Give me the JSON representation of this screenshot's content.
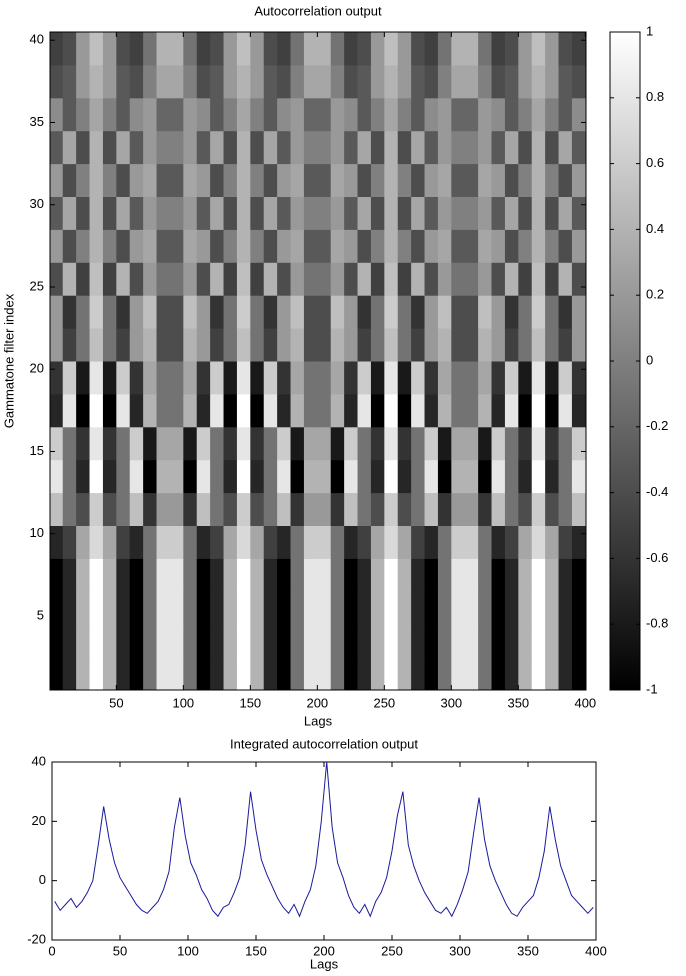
{
  "chart_data": [
    {
      "type": "heatmap",
      "title": "Autocorrelation output",
      "xlabel": "Lags",
      "ylabel": "Gammatone filter index",
      "colormap": "gray",
      "clim": [
        -1,
        1
      ],
      "colorbar_ticks": [
        -1,
        -0.8,
        -0.6,
        -0.4,
        -0.2,
        0,
        0.2,
        0.4,
        0.6,
        0.8,
        1
      ],
      "xlim": [
        0.5,
        400.5
      ],
      "xticks": [
        50,
        100,
        150,
        200,
        250,
        300,
        350,
        400
      ],
      "ylim": [
        0.5,
        40.5
      ],
      "yticks": [
        5,
        10,
        15,
        20,
        25,
        30,
        35,
        40
      ],
      "x": [
        5,
        15,
        25,
        35,
        45,
        55,
        65,
        75,
        85,
        95,
        105,
        115,
        125,
        135,
        145,
        155,
        165,
        175,
        185,
        195,
        205,
        215,
        225,
        235,
        245,
        255,
        265,
        275,
        285,
        295,
        305,
        315,
        325,
        335,
        345,
        355,
        365,
        375,
        385,
        395
      ],
      "y": [
        2,
        4,
        6,
        8,
        10,
        12,
        14,
        16,
        18,
        20,
        22,
        24,
        26,
        28,
        30,
        32,
        34,
        36,
        38,
        40
      ],
      "values": [
        [
          -1,
          -0.7,
          0.4,
          1,
          0.4,
          -0.7,
          -1,
          -0.1,
          0.8,
          0.8,
          -0.1,
          -1,
          -0.7,
          0.4,
          1,
          0.4,
          -0.7,
          -1,
          -0.1,
          0.8,
          0.8,
          -0.1,
          -1,
          -0.7,
          0.4,
          1,
          0.4,
          -0.7,
          -1,
          -0.1,
          0.8,
          0.8,
          -0.1,
          -1,
          -0.7,
          0.4,
          1,
          0.4,
          -0.7,
          -1
        ],
        [
          -1,
          -0.7,
          0.4,
          1,
          0.4,
          -0.7,
          -1,
          -0.1,
          0.8,
          0.8,
          -0.1,
          -1,
          -0.7,
          0.4,
          1,
          0.4,
          -0.7,
          -1,
          -0.1,
          0.8,
          0.8,
          -0.1,
          -1,
          -0.7,
          0.4,
          1,
          0.4,
          -0.7,
          -1,
          -0.1,
          0.8,
          0.8,
          -0.1,
          -1,
          -0.7,
          0.4,
          1,
          0.4,
          -0.7,
          -1
        ],
        [
          -1,
          -0.7,
          0.4,
          1,
          0.4,
          -0.7,
          -1,
          -0.1,
          0.8,
          0.8,
          -0.1,
          -1,
          -0.7,
          0.4,
          1,
          0.4,
          -0.7,
          -1,
          -0.1,
          0.8,
          0.8,
          -0.1,
          -1,
          -0.7,
          0.4,
          1,
          0.4,
          -0.7,
          -1,
          -0.1,
          0.8,
          0.8,
          -0.1,
          -1,
          -0.7,
          0.4,
          1,
          0.4,
          -0.7,
          -1
        ],
        [
          -1,
          -0.7,
          0.4,
          1,
          0.4,
          -0.7,
          -1,
          -0.1,
          0.8,
          0.8,
          -0.1,
          -1,
          -0.7,
          0.4,
          1,
          0.4,
          -0.7,
          -1,
          -0.1,
          0.8,
          0.8,
          -0.1,
          -1,
          -0.7,
          0.4,
          1,
          0.4,
          -0.7,
          -1,
          -0.1,
          0.8,
          0.8,
          -0.1,
          -1,
          -0.7,
          0.4,
          1,
          0.4,
          -0.7,
          -1
        ],
        [
          -0.7,
          -0.5,
          0.3,
          0.7,
          0.3,
          -0.5,
          -0.7,
          -0.1,
          0.6,
          0.6,
          -0.1,
          -0.7,
          -0.5,
          0.3,
          0.7,
          0.3,
          -0.5,
          -0.7,
          -0.1,
          0.6,
          0.6,
          -0.1,
          -0.7,
          -0.5,
          0.3,
          0.7,
          0.3,
          -0.5,
          -0.7,
          -0.1,
          0.6,
          0.6,
          -0.1,
          -0.7,
          -0.5,
          0.3,
          0.7,
          0.3,
          -0.5,
          -0.7
        ],
        [
          0.5,
          -0.1,
          -0.4,
          0.6,
          -0.4,
          -0.1,
          0.5,
          -0.6,
          0.2,
          0.2,
          -0.6,
          0.5,
          -0.1,
          -0.4,
          0.6,
          -0.4,
          -0.1,
          0.5,
          -0.6,
          0.2,
          0.2,
          -0.6,
          0.5,
          -0.1,
          -0.4,
          0.6,
          -0.4,
          -0.1,
          0.5,
          -0.6,
          0.2,
          0.2,
          -0.6,
          0.5,
          -0.1,
          -0.4,
          0.6,
          -0.4,
          -0.1,
          0.5
        ],
        [
          0.8,
          -0.1,
          -0.7,
          1,
          -0.7,
          -0.1,
          0.8,
          -1,
          0.4,
          0.4,
          -1,
          0.8,
          -0.1,
          -0.7,
          1,
          -0.7,
          -0.1,
          0.8,
          -1,
          0.4,
          0.4,
          -1,
          0.8,
          -0.1,
          -0.7,
          1,
          -0.7,
          -0.1,
          0.8,
          -1,
          0.4,
          0.4,
          -1,
          0.8,
          -0.1,
          -0.7,
          1,
          -0.7,
          -0.1,
          0.8
        ],
        [
          0.6,
          -0.1,
          -0.6,
          0.8,
          -0.6,
          -0.1,
          0.6,
          -0.8,
          0.3,
          0.3,
          -0.8,
          0.6,
          -0.1,
          -0.6,
          0.8,
          -0.6,
          -0.1,
          0.6,
          -0.8,
          0.3,
          0.3,
          -0.8,
          0.6,
          -0.1,
          -0.6,
          0.8,
          -0.6,
          -0.1,
          0.6,
          -0.8,
          0.3,
          0.3,
          -0.8,
          0.6,
          -0.1,
          -0.6,
          0.8,
          -0.6,
          -0.1,
          0.6
        ],
        [
          -0.7,
          0.8,
          -1,
          1,
          -1,
          0.8,
          -0.7,
          0.4,
          -0.1,
          -0.1,
          0.4,
          -0.7,
          0.8,
          -1,
          1,
          -1,
          0.8,
          -0.7,
          0.4,
          -0.1,
          -0.1,
          0.4,
          -0.7,
          0.8,
          -1,
          1,
          -1,
          0.8,
          -0.7,
          0.4,
          -0.1,
          -0.1,
          0.4,
          -0.7,
          0.8,
          -1,
          1,
          -1,
          0.8,
          -0.7
        ],
        [
          -0.6,
          0.6,
          -0.8,
          0.8,
          -0.8,
          0.6,
          -0.6,
          0.3,
          -0.1,
          -0.1,
          0.3,
          -0.6,
          0.6,
          -0.8,
          0.8,
          -0.8,
          0.6,
          -0.6,
          0.3,
          -0.1,
          -0.1,
          0.3,
          -0.6,
          0.6,
          -0.8,
          0.8,
          -0.8,
          0.6,
          -0.6,
          0.3,
          -0.1,
          -0.1,
          0.3,
          -0.6,
          0.6,
          -0.8,
          0.8,
          -0.8,
          0.6,
          -0.6
        ],
        [
          0.2,
          -0.5,
          -0.1,
          0.5,
          -0.1,
          -0.5,
          0.2,
          0.4,
          -0.4,
          -0.4,
          0.4,
          0.2,
          -0.5,
          -0.1,
          0.5,
          -0.1,
          -0.5,
          0.2,
          0.4,
          -0.4,
          -0.4,
          0.4,
          0.2,
          -0.5,
          -0.1,
          0.5,
          -0.1,
          -0.5,
          0.2,
          0.4,
          -0.4,
          -0.4,
          0.4,
          0.2,
          -0.5,
          -0.1,
          0.5,
          -0.1,
          -0.5,
          0.2
        ],
        [
          0.2,
          -0.6,
          -0.1,
          0.6,
          -0.1,
          -0.6,
          0.2,
          0.5,
          -0.4,
          -0.4,
          0.5,
          0.2,
          -0.6,
          -0.1,
          0.6,
          -0.1,
          -0.6,
          0.2,
          0.5,
          -0.4,
          -0.4,
          0.5,
          0.2,
          -0.6,
          -0.1,
          0.6,
          -0.1,
          -0.6,
          0.2,
          0.5,
          -0.4,
          -0.4,
          0.5,
          0.2,
          -0.6,
          -0.1,
          0.6,
          -0.1,
          -0.6,
          0.2
        ],
        [
          -0.4,
          0.4,
          -0.5,
          0.5,
          -0.5,
          0.4,
          -0.4,
          0.2,
          -0.1,
          -0.1,
          0.2,
          -0.4,
          0.4,
          -0.5,
          0.5,
          -0.5,
          0.4,
          -0.4,
          0.2,
          -0.1,
          -0.1,
          0.2,
          -0.4,
          0.4,
          -0.5,
          0.5,
          -0.5,
          0.4,
          -0.4,
          0.2,
          -0.1,
          -0.1,
          0.2,
          -0.4,
          0.4,
          -0.5,
          0.5,
          -0.5,
          0.4,
          -0.4
        ],
        [
          0.2,
          -0.4,
          0,
          0.4,
          0,
          -0.4,
          0.2,
          0.3,
          -0.3,
          -0.3,
          0.3,
          0.2,
          -0.4,
          0,
          0.4,
          0,
          -0.4,
          0.2,
          0.3,
          -0.3,
          -0.3,
          0.3,
          0.2,
          -0.4,
          0,
          0.4,
          0,
          -0.4,
          0.2,
          0.3,
          -0.3,
          -0.3,
          0.3,
          0.2,
          -0.4,
          0,
          0.4,
          0,
          -0.4,
          0.2
        ],
        [
          -0.3,
          0.3,
          -0.4,
          0.4,
          -0.4,
          0.3,
          -0.3,
          0.2,
          0,
          0,
          0.2,
          -0.3,
          0.3,
          -0.4,
          0.4,
          -0.4,
          0.3,
          -0.3,
          0.2,
          0,
          0,
          0.2,
          -0.3,
          0.3,
          -0.4,
          0.4,
          -0.4,
          0.3,
          -0.3,
          0.2,
          0,
          0,
          0.2,
          -0.3,
          0.3,
          -0.4,
          0.4,
          -0.4,
          0.3,
          -0.3
        ],
        [
          0.2,
          -0.4,
          0,
          0.4,
          0,
          -0.4,
          0.2,
          0.3,
          -0.3,
          -0.3,
          0.3,
          0.2,
          -0.4,
          0,
          0.4,
          0,
          -0.4,
          0.2,
          0.3,
          -0.3,
          -0.3,
          0.3,
          0.2,
          -0.4,
          0,
          0.4,
          0,
          -0.4,
          0.2,
          0.3,
          -0.3,
          -0.3,
          0.3,
          0.2,
          -0.4,
          0,
          0.4,
          0,
          -0.4,
          0.2
        ],
        [
          -0.3,
          0.3,
          -0.4,
          0.4,
          -0.4,
          0.3,
          -0.3,
          0.2,
          0,
          0,
          0.2,
          -0.3,
          0.3,
          -0.4,
          0.4,
          -0.4,
          0.3,
          -0.3,
          0.2,
          0,
          0,
          0.2,
          -0.3,
          0.3,
          -0.4,
          0.4,
          -0.4,
          0.3,
          -0.3,
          0.2,
          0,
          0,
          0.2,
          -0.3,
          0.3,
          -0.4,
          0.4,
          -0.4,
          0.3,
          -0.3
        ],
        [
          0.1,
          -0.3,
          0,
          0.3,
          0,
          -0.3,
          0.1,
          0.2,
          -0.2,
          -0.2,
          0.2,
          0.1,
          -0.3,
          0,
          0.3,
          0,
          -0.3,
          0.1,
          0.2,
          -0.2,
          -0.2,
          0.2,
          0.1,
          -0.3,
          0,
          0.3,
          0,
          -0.3,
          0.1,
          0.2,
          -0.2,
          -0.2,
          0.2,
          0.1,
          -0.3,
          0,
          0.3,
          0,
          -0.3,
          0.1
        ],
        [
          -0.4,
          -0.3,
          0.2,
          0.4,
          0.2,
          -0.3,
          -0.4,
          0,
          0.3,
          0.3,
          0,
          -0.4,
          -0.3,
          0.2,
          0.4,
          0.2,
          -0.3,
          -0.4,
          0,
          0.3,
          0.3,
          0,
          -0.4,
          -0.3,
          0.2,
          0.4,
          0.2,
          -0.3,
          -0.4,
          0,
          0.3,
          0.3,
          0,
          -0.4,
          -0.3,
          0.2,
          0.4,
          0.2,
          -0.3,
          -0.4
        ],
        [
          -0.5,
          -0.4,
          0.2,
          0.5,
          0.2,
          -0.4,
          -0.5,
          -0.1,
          0.4,
          0.4,
          -0.1,
          -0.5,
          -0.4,
          0.2,
          0.5,
          0.2,
          -0.4,
          -0.5,
          -0.1,
          0.4,
          0.4,
          -0.1,
          -0.5,
          -0.4,
          0.2,
          0.5,
          0.2,
          -0.4,
          -0.5,
          -0.1,
          0.4,
          0.4,
          -0.1,
          -0.5,
          -0.4,
          0.2,
          0.5,
          0.2,
          -0.4,
          -0.5
        ]
      ]
    },
    {
      "type": "line",
      "title": "Integrated autocorrelation output",
      "xlabel": "Lags",
      "color": "#1a1a9c",
      "xlim": [
        0,
        400
      ],
      "xticks": [
        0,
        50,
        100,
        150,
        200,
        250,
        300,
        350,
        400
      ],
      "ylim": [
        -20,
        40
      ],
      "yticks": [
        -20,
        0,
        20,
        40
      ],
      "x": [
        2,
        6,
        10,
        14,
        18,
        22,
        26,
        30,
        34,
        38,
        42,
        46,
        50,
        54,
        58,
        62,
        66,
        70,
        74,
        78,
        82,
        86,
        90,
        94,
        98,
        102,
        106,
        110,
        114,
        118,
        122,
        126,
        130,
        134,
        138,
        142,
        146,
        150,
        154,
        158,
        162,
        166,
        170,
        174,
        178,
        182,
        186,
        190,
        194,
        198,
        202,
        206,
        210,
        214,
        218,
        222,
        226,
        230,
        234,
        238,
        242,
        246,
        250,
        254,
        258,
        262,
        266,
        270,
        274,
        278,
        282,
        286,
        290,
        294,
        298,
        302,
        306,
        310,
        314,
        318,
        322,
        326,
        330,
        334,
        338,
        342,
        346,
        350,
        354,
        358,
        362,
        366,
        370,
        374,
        378,
        382,
        386,
        390,
        394,
        398
      ],
      "values": [
        -7,
        -10,
        -8,
        -6,
        -9,
        -7,
        -4,
        0,
        12,
        25,
        14,
        6,
        1,
        -2,
        -5,
        -8,
        -10,
        -11,
        -9,
        -7,
        -3,
        3,
        18,
        28,
        15,
        6,
        2,
        -3,
        -6,
        -10,
        -12,
        -9,
        -8,
        -4,
        1,
        12,
        30,
        17,
        7,
        2,
        -2,
        -6,
        -9,
        -11,
        -8,
        -12,
        -7,
        -3,
        5,
        20,
        40,
        18,
        6,
        1,
        -5,
        -9,
        -11,
        -8,
        -12,
        -7,
        -4,
        1,
        10,
        22,
        30,
        12,
        5,
        0,
        -4,
        -7,
        -10,
        -11,
        -9,
        -12,
        -8,
        -3,
        3,
        16,
        28,
        14,
        5,
        0,
        -4,
        -8,
        -11,
        -12,
        -9,
        -7,
        -5,
        1,
        10,
        25,
        14,
        5,
        0,
        -5,
        -7,
        -9,
        -11,
        -9
      ]
    }
  ]
}
